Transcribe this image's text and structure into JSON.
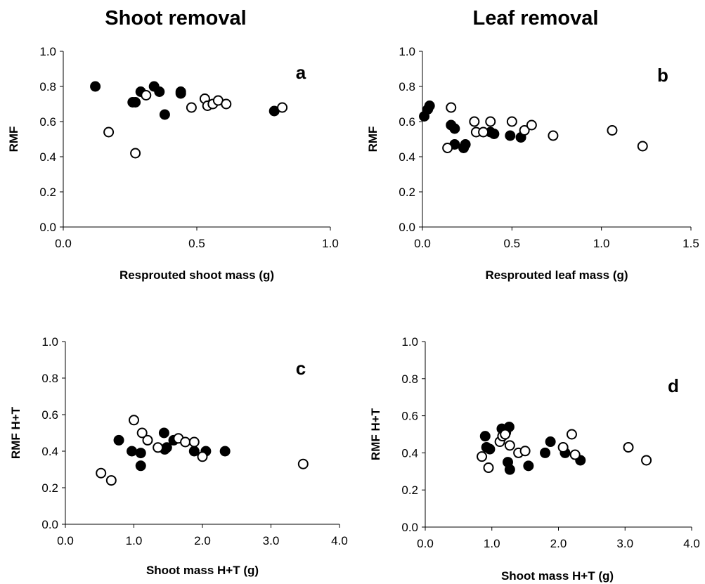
{
  "titles": {
    "left": "Shoot removal",
    "right": "Leaf removal"
  },
  "chart_data": [
    {
      "type": "scatter",
      "panel_label": "a",
      "xlabel": "Resprouted shoot mass (g)",
      "ylabel": "RMF",
      "xlim": [
        0,
        1.0
      ],
      "ylim": [
        0,
        1.0
      ],
      "xticks": [
        "0.0",
        "0.5",
        "1.0"
      ],
      "yticks": [
        "0.0",
        "0.2",
        "0.4",
        "0.6",
        "0.8",
        "1.0"
      ],
      "series": [
        {
          "marker": "filled",
          "points": [
            [
              0.12,
              0.8
            ],
            [
              0.26,
              0.71
            ],
            [
              0.27,
              0.71
            ],
            [
              0.29,
              0.77
            ],
            [
              0.34,
              0.8
            ],
            [
              0.36,
              0.77
            ],
            [
              0.38,
              0.64
            ],
            [
              0.44,
              0.77
            ],
            [
              0.44,
              0.76
            ],
            [
              0.79,
              0.66
            ]
          ]
        },
        {
          "marker": "open",
          "points": [
            [
              0.17,
              0.54
            ],
            [
              0.27,
              0.42
            ],
            [
              0.31,
              0.75
            ],
            [
              0.48,
              0.68
            ],
            [
              0.53,
              0.73
            ],
            [
              0.54,
              0.69
            ],
            [
              0.56,
              0.7
            ],
            [
              0.58,
              0.72
            ],
            [
              0.61,
              0.7
            ],
            [
              0.82,
              0.68
            ]
          ]
        }
      ]
    },
    {
      "type": "scatter",
      "panel_label": "b",
      "xlabel": "Resprouted leaf mass (g)",
      "ylabel": "RMF",
      "xlim": [
        0,
        1.5
      ],
      "ylim": [
        0,
        1.0
      ],
      "xticks": [
        "0.0",
        "0.5",
        "1.0",
        "1.5"
      ],
      "yticks": [
        "0.0",
        "0.2",
        "0.4",
        "0.6",
        "0.8",
        "1.0"
      ],
      "series": [
        {
          "marker": "filled",
          "points": [
            [
              0.01,
              0.63
            ],
            [
              0.03,
              0.67
            ],
            [
              0.04,
              0.69
            ],
            [
              0.16,
              0.58
            ],
            [
              0.18,
              0.56
            ],
            [
              0.18,
              0.47
            ],
            [
              0.23,
              0.45
            ],
            [
              0.24,
              0.47
            ],
            [
              0.38,
              0.54
            ],
            [
              0.4,
              0.53
            ],
            [
              0.49,
              0.52
            ],
            [
              0.55,
              0.51
            ]
          ]
        },
        {
          "marker": "open",
          "points": [
            [
              0.14,
              0.45
            ],
            [
              0.16,
              0.68
            ],
            [
              0.29,
              0.6
            ],
            [
              0.3,
              0.54
            ],
            [
              0.34,
              0.54
            ],
            [
              0.38,
              0.6
            ],
            [
              0.5,
              0.6
            ],
            [
              0.57,
              0.55
            ],
            [
              0.61,
              0.58
            ],
            [
              0.73,
              0.52
            ],
            [
              1.06,
              0.55
            ],
            [
              1.23,
              0.46
            ]
          ]
        }
      ]
    },
    {
      "type": "scatter",
      "panel_label": "c",
      "xlabel": "Shoot mass H+T (g)",
      "ylabel": "RMF H+T",
      "xlim": [
        0,
        4.0
      ],
      "ylim": [
        0,
        1.0
      ],
      "xticks": [
        "0.0",
        "1.0",
        "2.0",
        "3.0",
        "4.0"
      ],
      "yticks": [
        "0.0",
        "0.2",
        "0.4",
        "0.6",
        "0.8",
        "1.0"
      ],
      "series": [
        {
          "marker": "filled",
          "points": [
            [
              0.78,
              0.46
            ],
            [
              0.97,
              0.4
            ],
            [
              1.1,
              0.39
            ],
            [
              1.1,
              0.32
            ],
            [
              1.44,
              0.5
            ],
            [
              1.45,
              0.41
            ],
            [
              1.48,
              0.42
            ],
            [
              1.58,
              0.46
            ],
            [
              1.88,
              0.4
            ],
            [
              2.05,
              0.4
            ],
            [
              2.33,
              0.4
            ]
          ]
        },
        {
          "marker": "open",
          "points": [
            [
              0.52,
              0.28
            ],
            [
              0.67,
              0.24
            ],
            [
              1.0,
              0.57
            ],
            [
              1.12,
              0.5
            ],
            [
              1.2,
              0.46
            ],
            [
              1.35,
              0.42
            ],
            [
              1.65,
              0.47
            ],
            [
              1.75,
              0.45
            ],
            [
              1.88,
              0.45
            ],
            [
              2.0,
              0.37
            ],
            [
              3.47,
              0.33
            ]
          ]
        }
      ]
    },
    {
      "type": "scatter",
      "panel_label": "d",
      "xlabel": "Shoot mass H+T (g)",
      "ylabel": "RMF H+T",
      "xlim": [
        0,
        4.0
      ],
      "ylim": [
        0,
        1.0
      ],
      "xticks": [
        "0.0",
        "1.0",
        "2.0",
        "3.0",
        "4.0"
      ],
      "yticks": [
        "0.0",
        "0.2",
        "0.4",
        "0.6",
        "0.8",
        "1.0"
      ],
      "series": [
        {
          "marker": "filled",
          "points": [
            [
              0.9,
              0.49
            ],
            [
              0.92,
              0.43
            ],
            [
              0.97,
              0.42
            ],
            [
              1.15,
              0.53
            ],
            [
              1.21,
              0.51
            ],
            [
              1.24,
              0.35
            ],
            [
              1.26,
              0.54
            ],
            [
              1.27,
              0.31
            ],
            [
              1.55,
              0.33
            ],
            [
              1.8,
              0.4
            ],
            [
              1.88,
              0.46
            ],
            [
              2.1,
              0.4
            ],
            [
              2.33,
              0.36
            ]
          ]
        },
        {
          "marker": "open",
          "points": [
            [
              0.85,
              0.38
            ],
            [
              0.95,
              0.32
            ],
            [
              1.12,
              0.46
            ],
            [
              1.16,
              0.49
            ],
            [
              1.2,
              0.5
            ],
            [
              1.27,
              0.44
            ],
            [
              1.4,
              0.4
            ],
            [
              1.5,
              0.41
            ],
            [
              2.07,
              0.43
            ],
            [
              2.2,
              0.5
            ],
            [
              2.25,
              0.39
            ],
            [
              3.05,
              0.43
            ],
            [
              3.32,
              0.36
            ]
          ]
        }
      ]
    }
  ]
}
